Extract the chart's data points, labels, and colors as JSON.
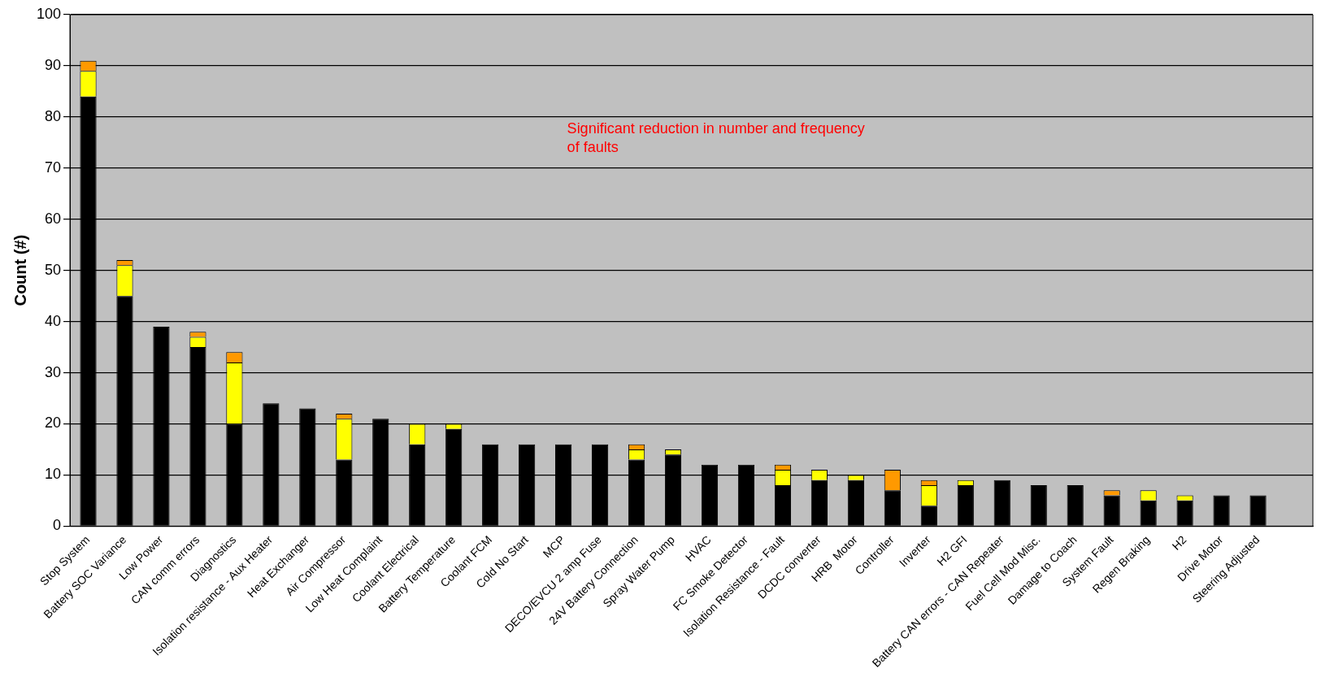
{
  "chart_data": {
    "type": "bar",
    "stacked": true,
    "ylabel": "Count (#)",
    "categories": [
      "Stop System",
      "Battery SOC Variance",
      "Low Power",
      "CAN comm errors",
      "Diagnostics",
      "Isolation resistance - Aux Heater",
      "Heat Exchanger",
      "Air Compressor",
      "Low Heat Complaint",
      "Coolant Electrical",
      "Battery Temperature",
      "Coolant FCM",
      "Cold No Start",
      "MCP",
      "DECO/EVCU 2 amp Fuse",
      "24V Battery Connection",
      "Spray Water Pump",
      "HVAC",
      "FC Smoke Detector",
      "Isolation Resistance - Fault",
      "DCDC converter",
      "HRB  Motor",
      "Controller",
      "Inverter",
      "H2 GFI",
      "Battery CAN errors - CAN Repeater",
      "Fuel Cell Mod Misc.",
      "Damage to Coach",
      "System Fault",
      "Regen Braking",
      "H2",
      "Drive Motor",
      "Steering Adjusted",
      null
    ],
    "series": [
      {
        "color": "#000000",
        "values": [
          84,
          45,
          39,
          35,
          20,
          24,
          23,
          13,
          21,
          16,
          19,
          16,
          16,
          16,
          16,
          13,
          14,
          12,
          12,
          8,
          9,
          9,
          7,
          4,
          8,
          9,
          8,
          8,
          6,
          5,
          5,
          6,
          6,
          null
        ]
      },
      {
        "color": "#ffff00",
        "values": [
          5,
          6,
          0,
          2,
          12,
          0,
          0,
          8,
          0,
          4,
          1,
          0,
          0,
          0,
          0,
          2,
          1,
          0,
          0,
          3,
          2,
          1,
          0,
          4,
          1,
          0,
          0,
          0,
          0,
          2,
          1,
          0,
          0,
          null
        ]
      },
      {
        "color": "#ff9900",
        "values": [
          2,
          1,
          0,
          1,
          2,
          0,
          0,
          1,
          0,
          0,
          0,
          0,
          0,
          0,
          0,
          1,
          0,
          0,
          0,
          1,
          0,
          0,
          4,
          1,
          0,
          0,
          0,
          0,
          1,
          0,
          0,
          0,
          0,
          null
        ]
      }
    ],
    "ylim": [
      0,
      100
    ],
    "yticks": [
      0,
      10,
      20,
      30,
      40,
      50,
      60,
      70,
      80,
      90,
      100
    ],
    "grid": "y",
    "annotations": [
      "Significant reduction in number and frequency of faults"
    ]
  }
}
